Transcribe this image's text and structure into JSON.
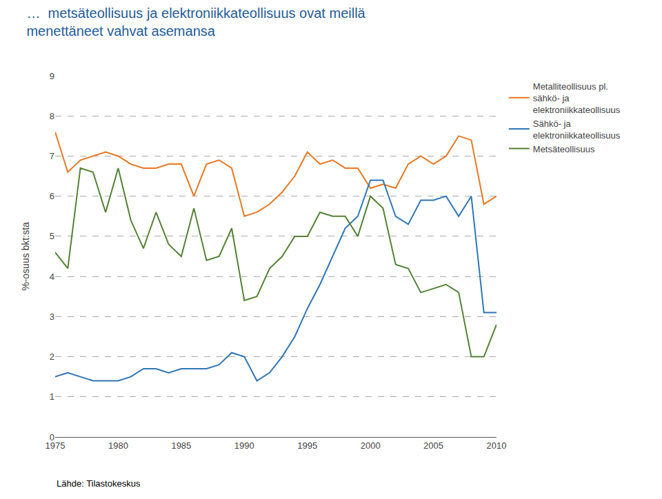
{
  "chart_data": {
    "type": "line",
    "title": "…  metsäteollisuus ja elektroniikkateollisuus ovat meillä\nmenettäneet vahvat asemansa",
    "ylabel": "%-osuus bkt:sta",
    "annotations": [
      "Lähde: Tilastokeskus"
    ],
    "x": [
      1975,
      1976,
      1977,
      1978,
      1979,
      1980,
      1981,
      1982,
      1983,
      1984,
      1985,
      1986,
      1987,
      1988,
      1989,
      1990,
      1991,
      1992,
      1993,
      1994,
      1995,
      1996,
      1997,
      1998,
      1999,
      2000,
      2001,
      2002,
      2003,
      2004,
      2005,
      2006,
      2007,
      2008,
      2009,
      2010
    ],
    "series": [
      {
        "name": "Metalliteollisuus pl.\nsähkö- ja\nelektroniikkateollisuus",
        "color": "#E87722",
        "values": [
          7.6,
          6.6,
          6.9,
          7.0,
          7.1,
          7.0,
          6.8,
          6.7,
          6.7,
          6.8,
          6.8,
          6.0,
          6.8,
          6.9,
          6.7,
          5.5,
          5.6,
          5.8,
          6.1,
          6.5,
          7.1,
          6.8,
          6.9,
          6.7,
          6.7,
          6.2,
          6.3,
          6.2,
          6.8,
          7.0,
          6.8,
          7.0,
          7.5,
          7.4,
          5.8,
          6.0
        ]
      },
      {
        "name": "Sähkö- ja\nelektroniikkateollisuus",
        "color": "#2E75B6",
        "values": [
          1.5,
          1.6,
          1.5,
          1.4,
          1.4,
          1.4,
          1.5,
          1.7,
          1.7,
          1.6,
          1.7,
          1.7,
          1.7,
          1.8,
          2.1,
          2.0,
          1.4,
          1.6,
          2.0,
          2.5,
          3.2,
          3.8,
          4.5,
          5.2,
          5.5,
          6.4,
          6.4,
          5.5,
          5.3,
          5.9,
          5.9,
          6.0,
          5.5,
          6.0,
          3.1,
          3.1
        ]
      },
      {
        "name": "Metsäteollisuus",
        "color": "#548235",
        "values": [
          4.6,
          4.2,
          6.7,
          6.6,
          5.6,
          6.7,
          5.4,
          4.7,
          5.6,
          4.8,
          4.5,
          5.7,
          4.4,
          4.5,
          5.2,
          3.4,
          3.5,
          4.2,
          4.5,
          5.0,
          5.0,
          5.6,
          5.5,
          5.5,
          5.0,
          6.0,
          5.7,
          4.3,
          4.2,
          3.6,
          3.7,
          3.8,
          3.6,
          2.0,
          2.0,
          2.8
        ]
      }
    ],
    "color": "#1F5C99",
    "xlim": [
      1975,
      2010
    ],
    "xticks": [
      1975,
      1980,
      1985,
      1990,
      1995,
      2000,
      2005,
      2010
    ],
    "ylim": [
      0,
      9
    ],
    "yticks": [
      0,
      1,
      2,
      3,
      4,
      5,
      6,
      7,
      8,
      9
    ],
    "grid": true,
    "legend": "right"
  }
}
